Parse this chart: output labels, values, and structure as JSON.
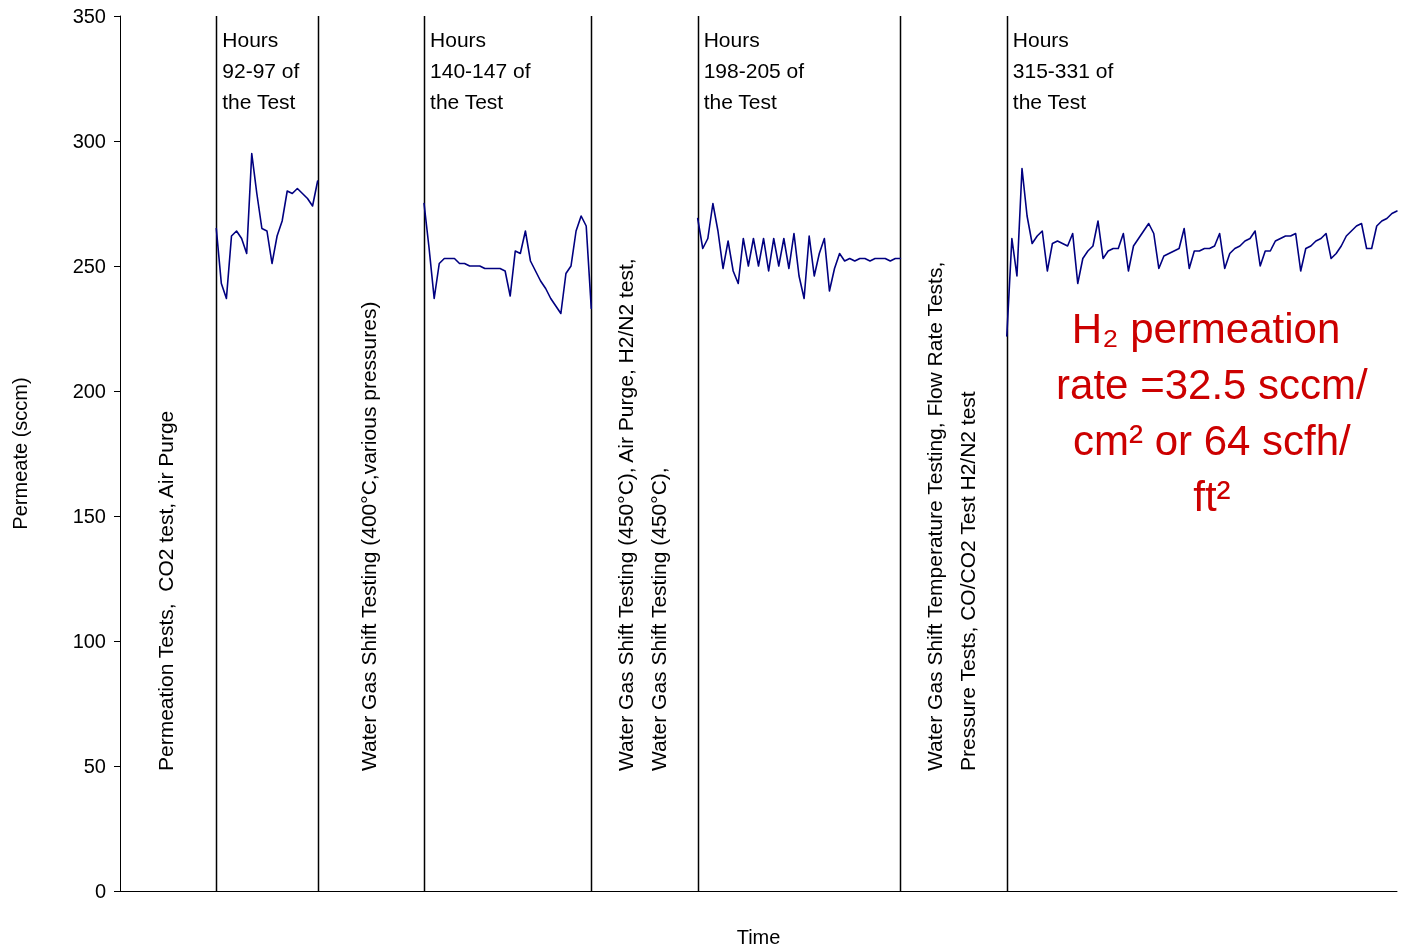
{
  "chart_data": {
    "type": "line",
    "xlabel": "Time",
    "ylabel": "Permeate (sccm)",
    "ylim": [
      0,
      350
    ],
    "yticks": [
      0,
      50,
      100,
      150,
      200,
      250,
      300,
      350
    ],
    "tick_labels": "y",
    "line_style": "solid",
    "color": "#000080",
    "categories": [
      null,
      null,
      null,
      null,
      null,
      null,
      null,
      null,
      null,
      null,
      null,
      null,
      null,
      null,
      null,
      null,
      null,
      null,
      null,
      null,
      null,
      null,
      null,
      null,
      null,
      null,
      null,
      null,
      null,
      null,
      null,
      null,
      null,
      null,
      null,
      null,
      null,
      null,
      null,
      null,
      null,
      null,
      null,
      null,
      null,
      null,
      null,
      null,
      null,
      null,
      null,
      null,
      null,
      null,
      null,
      null,
      null,
      null,
      null,
      null,
      null,
      null,
      null,
      null,
      null,
      null,
      null,
      null,
      null,
      null,
      null,
      null,
      null,
      null,
      null,
      null,
      null,
      null,
      null,
      null,
      null,
      null,
      null,
      null,
      null,
      null,
      null,
      null,
      null,
      null,
      null,
      null,
      null,
      null,
      null,
      null,
      null,
      null,
      null,
      null,
      null,
      null,
      null,
      null,
      null,
      null,
      null,
      null,
      null,
      null,
      null,
      null,
      null,
      null,
      null,
      null,
      null,
      null,
      null,
      null,
      null,
      null,
      null,
      null,
      null,
      null,
      null,
      null,
      null,
      null,
      null,
      null,
      null,
      null,
      null,
      null,
      null,
      null,
      null,
      null,
      null,
      null,
      null,
      null,
      null,
      null,
      null,
      null,
      null,
      null,
      null,
      null,
      null,
      null,
      null,
      null,
      null,
      null,
      null,
      null,
      null,
      null,
      null,
      null,
      null,
      null,
      null,
      null,
      null,
      null,
      null,
      null,
      null,
      null,
      null,
      null,
      null,
      null,
      null,
      null,
      null,
      null,
      null,
      null,
      null,
      null,
      null,
      null,
      null,
      null,
      null,
      null,
      null,
      null,
      null,
      null,
      null,
      null,
      null,
      null,
      null,
      null,
      null,
      null,
      null,
      null,
      null,
      null,
      null,
      null,
      null,
      null,
      null,
      null,
      null,
      null,
      null,
      null,
      null,
      null,
      null,
      null,
      null,
      null,
      null,
      null,
      null,
      null,
      null,
      null,
      null,
      null,
      null,
      null,
      null,
      null,
      null,
      null,
      null,
      null,
      null,
      null,
      null,
      null,
      null,
      null,
      null,
      null,
      null,
      null,
      null,
      null,
      null
    ],
    "values": [
      null,
      null,
      null,
      null,
      null,
      null,
      null,
      null,
      null,
      null,
      null,
      null,
      null,
      null,
      null,
      null,
      null,
      null,
      null,
      265,
      243,
      237,
      262,
      264,
      261,
      255,
      295,
      279,
      265,
      264,
      251,
      262,
      268,
      280,
      279,
      281,
      279,
      277,
      274,
      284,
      null,
      null,
      null,
      null,
      null,
      null,
      null,
      null,
      null,
      null,
      null,
      null,
      null,
      null,
      null,
      null,
      null,
      null,
      null,
      null,
      275,
      257,
      237,
      251,
      253,
      253,
      253,
      251,
      251,
      250,
      250,
      250,
      249,
      249,
      249,
      249,
      248,
      238,
      256,
      255,
      264,
      252,
      248,
      244,
      241,
      237,
      234,
      231,
      247,
      250,
      264,
      270,
      266,
      233,
      null,
      null,
      null,
      null,
      null,
      null,
      null,
      null,
      null,
      null,
      null,
      null,
      null,
      null,
      null,
      null,
      null,
      null,
      null,
      null,
      269,
      257,
      261,
      275,
      264,
      249,
      260,
      248,
      243,
      261,
      250,
      261,
      250,
      261,
      248,
      261,
      250,
      261,
      249,
      263,
      246,
      237,
      262,
      246,
      255,
      261,
      240,
      249,
      255,
      252,
      253,
      252,
      253,
      253,
      252,
      253,
      253,
      253,
      252,
      253,
      253,
      null,
      null,
      null,
      null,
      null,
      null,
      null,
      null,
      null,
      null,
      null,
      null,
      null,
      null,
      null,
      null,
      null,
      null,
      null,
      null,
      222,
      261,
      246,
      289,
      270,
      259,
      262,
      264,
      248,
      259,
      260,
      259,
      258,
      263,
      243,
      253,
      256,
      258,
      268,
      253,
      256,
      257,
      257,
      263,
      248,
      258,
      261,
      264,
      267,
      263,
      249,
      254,
      255,
      256,
      257,
      265,
      249,
      256,
      256,
      257,
      257,
      258,
      263,
      249,
      255,
      257,
      258,
      260,
      261,
      264,
      250,
      256,
      256,
      260,
      261,
      262,
      262,
      263,
      248,
      257,
      258,
      260,
      261,
      263,
      253,
      255,
      258,
      262,
      264,
      266,
      267,
      257,
      257,
      266,
      268,
      269,
      271,
      272
    ],
    "annotations": [
      "Permeation Tests,  CO2 test, Air Purge",
      "Hours 92-97 of the Test",
      "Water Gas Shift Testing (400°C,various pressures)",
      "Hours 140-147 of the Test",
      "Water Gas Shift Testing (450°C), Air Purge, H2/N2 test, Water Gas Shift Testing (450°C),",
      "Hours 198-205 of the Test",
      "Water Gas Shift Temperature Testing, Flow Rate Tests, Pressure Tests, CO/CO2 Test H2/N2 test",
      "Hours 315-331 of the Test",
      "H₂ permeation rate =32.5 sccm/cm² or 64 scfh/ft²"
    ]
  }
}
